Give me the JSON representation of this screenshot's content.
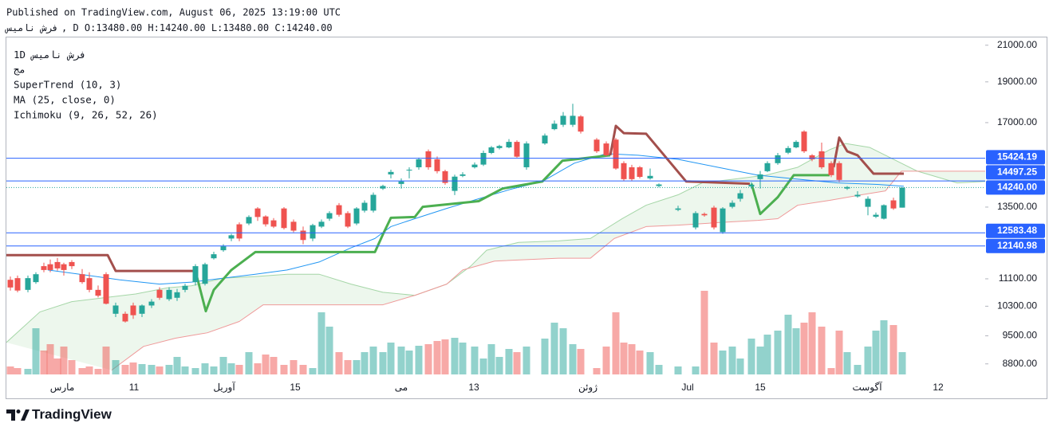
{
  "header": {
    "published": "Published on TradingView.com, August 06, 2025 13:19:00 UTC",
    "symbol": "فرش نامیس",
    "details": ", D O:13480.00 H:14240.00 L:13480.00 C:14240.00"
  },
  "footer": {
    "brand": "TradingView"
  },
  "chart_data": {
    "type": "candlestick",
    "log": true,
    "grid": false,
    "legend": {
      "interval": "1D",
      "symbol": "فرش نامیس",
      "exchange": "مج"
    },
    "xlim": [
      0,
      122.7
    ],
    "xticks": [
      {
        "value": 7.0,
        "label": "مارس"
      },
      {
        "value": 16.0,
        "label": "11"
      },
      {
        "value": 27.3,
        "label": "آوریل"
      },
      {
        "value": 36.2,
        "label": "15"
      },
      {
        "value": 49.5,
        "label": "می"
      },
      {
        "value": 58.6,
        "label": "13"
      },
      {
        "value": 72.9,
        "label": "ژوئن"
      },
      {
        "value": 85.4,
        "label": "Jul"
      },
      {
        "value": 94.5,
        "label": "15"
      },
      {
        "value": 107.9,
        "label": "آگوست"
      },
      {
        "value": 116.8,
        "label": "12"
      }
    ],
    "ylim": [
      8550,
      21450
    ],
    "yticks": [
      {
        "value": 21000,
        "label": "21000.00"
      },
      {
        "value": 19000,
        "label": "19000.00"
      },
      {
        "value": 17000,
        "label": "17000.00"
      },
      {
        "value": 13500,
        "label": "13500.00"
      },
      {
        "value": 11100,
        "label": "11100.00"
      },
      {
        "value": 10300,
        "label": "10300.00"
      },
      {
        "value": 9500,
        "label": "9500.00"
      },
      {
        "value": 8800,
        "label": "8800.00"
      }
    ],
    "up_color": "#26a69a",
    "down_color": "#ef5350",
    "volume_up_color": "rgba(38,166,154,0.5)",
    "volume_down_color": "rgba(239,83,80,0.5)",
    "x": [
      0.5,
      1.4,
      2.7,
      3.7,
      4.7,
      5.5,
      6.4,
      7.2,
      8.2,
      9.5,
      10.4,
      11.5,
      12.5,
      13.7,
      14.9,
      15.9,
      17.0,
      18.2,
      19.2,
      20.4,
      21.4,
      22.4,
      23.7,
      24.9,
      26.0,
      27.2,
      28.2,
      29.2,
      30.4,
      31.5,
      32.5,
      33.5,
      34.8,
      36.0,
      37.2,
      38.4,
      39.5,
      40.5,
      41.7,
      42.8,
      43.9,
      44.9,
      46.0,
      47.2,
      48.2,
      49.5,
      50.5,
      51.7,
      52.9,
      54.0,
      55.0,
      56.2,
      57.2,
      58.7,
      59.8,
      60.8,
      61.8,
      63.0,
      64.0,
      65.2,
      67.5,
      68.7,
      69.8,
      71.0,
      72.0,
      74.0,
      75.2,
      76.4,
      77.4,
      78.4,
      79.4,
      80.7,
      81.8,
      84.2,
      86.4,
      87.5,
      88.7,
      89.8,
      91.0,
      92.0,
      93.4,
      94.5,
      95.4,
      96.7,
      98.0,
      99.0,
      100.0,
      101.0,
      102.2,
      103.4,
      104.4,
      105.4,
      106.7,
      108.0,
      109.0,
      110.0,
      111.2,
      112.3
    ],
    "open": [
      11070,
      11120,
      10770,
      11000,
      11490,
      11550,
      11620,
      11550,
      11620,
      11240,
      11120,
      10770,
      11240,
      10090,
      10090,
      10320,
      10090,
      10320,
      10770,
      10500,
      10540,
      10770,
      11000,
      10950,
      11740,
      12000,
      12390,
      12880,
      12910,
      13450,
      13160,
      13020,
      13450,
      12970,
      12660,
      12390,
      12800,
      13080,
      13570,
      13280,
      12910,
      13370,
      13370,
      14200,
      14760,
      14380,
      14920,
      15050,
      15720,
      15380,
      14890,
      14110,
      14700,
      15050,
      15160,
      15650,
      15860,
      15890,
      16130,
      15050,
      16060,
      16700,
      16900,
      16900,
      17290,
      16230,
      16060,
      16230,
      15220,
      15050,
      15050,
      14600,
      14300,
      13400,
      12770,
      13250,
      13480,
      12610,
      13510,
      13810,
      14280,
      14570,
      14890,
      15220,
      15660,
      15890,
      16590,
      15550,
      15720,
      15220,
      15220,
      14200,
      13900,
      13510,
      13150,
      13080,
      13750,
      13480
    ],
    "high": [
      11170,
      11200,
      11200,
      11300,
      11600,
      11700,
      11750,
      11600,
      11680,
      11400,
      11300,
      10900,
      11300,
      10400,
      10150,
      10400,
      10350,
      10500,
      10850,
      10850,
      10800,
      10950,
      11550,
      11600,
      11950,
      12200,
      12550,
      12950,
      13200,
      13500,
      13200,
      13100,
      13500,
      13050,
      12800,
      12900,
      13050,
      13350,
      13650,
      13350,
      13500,
      13750,
      14050,
      14350,
      14950,
      14600,
      15050,
      15450,
      15800,
      15500,
      14950,
      14750,
      14850,
      15250,
      15750,
      15950,
      16000,
      16250,
      16200,
      16150,
      16500,
      17100,
      17500,
      17900,
      17350,
      16300,
      16150,
      16300,
      15300,
      15150,
      15100,
      15000,
      14400,
      13550,
      13350,
      13300,
      13550,
      13500,
      13750,
      14150,
      14450,
      14900,
      15300,
      15650,
      15950,
      16200,
      16650,
      15600,
      16100,
      15300,
      15300,
      14300,
      14100,
      13900,
      13300,
      13600,
      13850,
      14240
    ],
    "low": [
      10750,
      10700,
      10700,
      10950,
      11300,
      11300,
      11350,
      11200,
      11400,
      10950,
      10700,
      10550,
      10350,
      10000,
      9850,
      9950,
      10000,
      10250,
      10480,
      10450,
      10450,
      10700,
      10900,
      10900,
      11700,
      11950,
      12300,
      12300,
      12850,
      13000,
      12800,
      12750,
      12700,
      12600,
      12200,
      12300,
      12750,
      13000,
      13150,
      12750,
      12850,
      13300,
      13300,
      14150,
      14600,
      14200,
      14600,
      14950,
      14950,
      14800,
      14350,
      13950,
      14650,
      15000,
      15100,
      15600,
      15800,
      15850,
      15450,
      14950,
      16000,
      16650,
      16800,
      16800,
      16500,
      15650,
      15500,
      14950,
      14500,
      14500,
      14600,
      14550,
      14250,
      13350,
      12700,
      13150,
      12700,
      12550,
      13450,
      13700,
      14200,
      14200,
      14850,
      15150,
      15600,
      15850,
      15650,
      15300,
      14980,
      14650,
      14450,
      14150,
      13850,
      13200,
      13100,
      13050,
      13400,
      13480
    ],
    "close": [
      10840,
      10750,
      11120,
      11240,
      11370,
      11370,
      11420,
      11370,
      11490,
      11000,
      10770,
      10600,
      10370,
      10320,
      9880,
      10050,
      10320,
      10430,
      10540,
      10770,
      10700,
      10890,
      11490,
      11550,
      11870,
      12130,
      12500,
      12390,
      13140,
      13140,
      12880,
      12800,
      12750,
      12660,
      12340,
      12850,
      12970,
      13280,
      13220,
      12800,
      13450,
      13660,
      13960,
      14300,
      14860,
      14480,
      14950,
      15380,
      15050,
      14890,
      14420,
      14670,
      14760,
      15160,
      15650,
      15890,
      15950,
      16130,
      15490,
      16060,
      16410,
      16950,
      17320,
      17320,
      16590,
      15720,
      15550,
      15000,
      14570,
      14570,
      14660,
      14700,
      14360,
      13450,
      13280,
      13200,
      12770,
      13450,
      13660,
      14020,
      14350,
      14760,
      15220,
      15550,
      15860,
      16130,
      15720,
      15380,
      15050,
      14730,
      14540,
      14260,
      13960,
      13810,
      13220,
      13570,
      13450,
      14240
    ],
    "volume_lim": [
      0,
      110
    ],
    "volume": [
      10,
      8,
      7,
      58,
      30,
      38,
      20,
      35,
      18,
      8,
      10,
      7,
      35,
      18,
      12,
      15,
      13,
      12,
      10,
      12,
      22,
      10,
      8,
      14,
      10,
      22,
      14,
      12,
      28,
      14,
      25,
      22,
      12,
      18,
      12,
      8,
      78,
      60,
      28,
      18,
      18,
      28,
      35,
      28,
      40,
      35,
      30,
      36,
      38,
      42,
      44,
      46,
      40,
      35,
      20,
      38,
      22,
      32,
      28,
      35,
      45,
      65,
      58,
      38,
      32,
      8,
      35,
      78,
      40,
      38,
      30,
      28,
      12,
      10,
      10,
      105,
      40,
      30,
      35,
      20,
      45,
      35,
      50,
      55,
      75,
      58,
      65,
      78,
      60,
      8,
      55,
      28,
      12,
      35,
      55,
      68,
      62,
      28
    ],
    "indicators": {
      "supertrend": {
        "label": "SuperTrend (10, 3)",
        "lines": [
          {
            "color": "#4caf50",
            "x": [
              23.7,
              25.0,
              26.0,
              28.2,
              31.2,
              46.2,
              47.2,
              48.2,
              51.2,
              52.2,
              59.2,
              62.2,
              67.2,
              69.7,
              75.7,
              null,
              93.4,
              94.5,
              96.7,
              98.7,
              103.2
            ],
            "values": [
              11340,
              10160,
              10770,
              11370,
              11940,
              11940,
              12530,
              13110,
              13140,
              13510,
              13720,
              14200,
              14480,
              15320,
              15550,
              null,
              14390,
              13250,
              13870,
              14730,
              14730
            ]
          },
          {
            "color": "#a34f4c",
            "x": [
              0,
              12.7,
              13.7,
              23.7,
              null,
              75.7,
              76.4,
              77.4,
              80.2,
              85.2,
              93.2,
              null,
              103.7,
              104.4,
              105.4,
              106.7,
              108.7,
              112.5
            ],
            "values": [
              11840,
              11840,
              11340,
              11340,
              null,
              15550,
              16850,
              16520,
              16490,
              14480,
              14390,
              null,
              15050,
              16320,
              15720,
              15550,
              14790,
              14790
            ]
          }
        ]
      },
      "ma": {
        "label": "MA (25, close, 0)",
        "color": "#2196f3",
        "x": [
          5.2,
          9.2,
          14.2,
          19.2,
          23.2,
          27.2,
          31.2,
          35.2,
          39.2,
          43.2,
          46.2,
          48.2,
          51.2,
          55.2,
          59.2,
          63.2,
          67.2,
          71.2,
          75.2,
          79.2,
          84.2,
          89.2,
          94.2,
          99.2,
          104.2,
          109.2,
          112.5
        ],
        "values": [
          11370,
          11240,
          11070,
          10940,
          11000,
          11120,
          11240,
          11370,
          11620,
          12080,
          12390,
          12800,
          13080,
          13450,
          13810,
          14170,
          14480,
          15220,
          15620,
          15550,
          15380,
          15050,
          14730,
          14570,
          14420,
          14360,
          14290
        ]
      },
      "ichimoku": {
        "label": "Ichimoku (9, 26, 52, 26)",
        "cloud_color": "rgba(76,175,80,0.1)",
        "lines": [
          {
            "color": "#a5d6a7",
            "x": [
              0,
              4.2,
              8.2,
              12.2,
              16.2,
              20.2,
              23.2,
              27.2,
              31.2,
              35.2,
              39.2,
              43.2,
              47.2,
              51.2,
              55.2,
              58.2,
              60.2,
              64.2,
              69.2,
              73.2,
              77.2,
              80.2,
              84.2,
              87.2,
              91.2,
              95.2,
              99.2,
              103.2,
              105.2,
              108.2,
              111.2,
              114.2,
              119.2,
              122.7
            ],
            "values": [
              9330,
              10140,
              10430,
              10540,
              10650,
              10830,
              10890,
              11120,
              11170,
              11240,
              11240,
              10940,
              10700,
              10610,
              10940,
              11490,
              12000,
              12260,
              12310,
              12390,
              13080,
              13570,
              13960,
              14420,
              14570,
              14730,
              15050,
              15790,
              16060,
              15890,
              15380,
              14890,
              14420,
              14480
            ]
          },
          {
            "color": "#ef9a9a",
            "x": [
              13.2,
              17.2,
              21.2,
              25.2,
              29.2,
              32.2,
              39.2,
              47.2,
              51.2,
              55.2,
              57.2,
              61.2,
              69.2,
              73.2,
              76.2,
              80.2,
              84.2,
              89.2,
              94.2,
              96.7,
              99.2,
              103.2,
              107.2,
              110.2,
              112.2,
              122.7
            ],
            "values": [
              8650,
              9230,
              9440,
              9580,
              9880,
              10340,
              10340,
              10340,
              10610,
              10940,
              11370,
              11650,
              11740,
              11740,
              12390,
              12800,
              12850,
              12940,
              13020,
              13080,
              13570,
              13750,
              13960,
              14110,
              14890,
              14890
            ]
          }
        ]
      }
    },
    "price_lines": [
      {
        "value": 15424.19,
        "label": "15424.19",
        "color": "#2962ff",
        "style": "solid"
      },
      {
        "value": 14497.25,
        "label": "14497.25",
        "color": "#2962ff",
        "style": "solid"
      },
      {
        "value": 14240,
        "label": "14240.00",
        "color": "#2962ff",
        "line_color": "#26a69a",
        "style": "dotted"
      },
      {
        "value": 12583.48,
        "label": "12583.48",
        "color": "#2962ff",
        "style": "solid"
      },
      {
        "value": 12140.98,
        "label": "12140.98",
        "color": "#2962ff",
        "style": "solid"
      }
    ]
  }
}
